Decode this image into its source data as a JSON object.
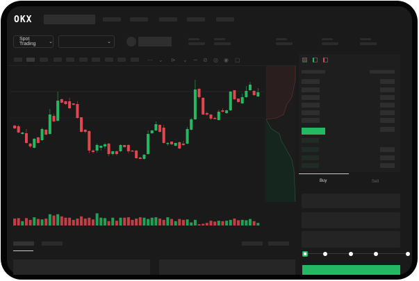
{
  "header": {
    "logo": "OKX"
  },
  "toolbar": {
    "market_selector": "Spot Trading",
    "chevron": "⌄"
  },
  "trade_panel": {
    "tabs": [
      {
        "label": "Buy",
        "active": true
      },
      {
        "label": "Sell",
        "active": false
      }
    ],
    "slider_level": 0
  },
  "colors": {
    "up": "#25b862",
    "down": "#e0474f",
    "background": "#1a1a1a",
    "accent": "#25b862"
  },
  "icons": [
    "chevron-down-icon",
    "indicator-icon",
    "draw-line-icon",
    "ruler-icon",
    "camera-icon",
    "settings-icon",
    "fullscreen-icon",
    "orderbook-both-icon",
    "orderbook-bids-icon",
    "orderbook-asks-icon"
  ],
  "chart_data": {
    "type": "candlestick",
    "columns": [
      "open",
      "high",
      "low",
      "close"
    ],
    "candles": [
      [
        119,
        120,
        114,
        115
      ],
      [
        118,
        120,
        108,
        109
      ],
      [
        107,
        110,
        106,
        109
      ],
      [
        108,
        114,
        93,
        94
      ],
      [
        93,
        94,
        87,
        89
      ],
      [
        87,
        101,
        86,
        100
      ],
      [
        102,
        103,
        93,
        94
      ],
      [
        98,
        116,
        97,
        114
      ],
      [
        113,
        114,
        105,
        106
      ],
      [
        107,
        143,
        106,
        135
      ],
      [
        133,
        136,
        124,
        125
      ],
      [
        126,
        168,
        125,
        155
      ],
      [
        157,
        158,
        151,
        152
      ],
      [
        154,
        155,
        149,
        150
      ],
      [
        154,
        159,
        143,
        144
      ],
      [
        151,
        151,
        148,
        149
      ],
      [
        150,
        154,
        129,
        130
      ],
      [
        131,
        131,
        109,
        110
      ],
      [
        113,
        114,
        108,
        110
      ],
      [
        111,
        112,
        79,
        83
      ],
      [
        83,
        85,
        79,
        81
      ],
      [
        83,
        93,
        80,
        91
      ],
      [
        87,
        90,
        83,
        90
      ],
      [
        89,
        94,
        86,
        92
      ],
      [
        93,
        94,
        75,
        78
      ],
      [
        78,
        82,
        76,
        82
      ],
      [
        82,
        83,
        76,
        78
      ],
      [
        82,
        92,
        81,
        91
      ],
      [
        91,
        91,
        87,
        88
      ],
      [
        91,
        92,
        79,
        82
      ],
      [
        83,
        84,
        82,
        82
      ],
      [
        83,
        84,
        71,
        72
      ],
      [
        73,
        74,
        71,
        71
      ],
      [
        71,
        78,
        70,
        77
      ],
      [
        78,
        112,
        77,
        107
      ],
      [
        108,
        113,
        107,
        112
      ],
      [
        112,
        125,
        111,
        121
      ],
      [
        120,
        121,
        109,
        110
      ],
      [
        116,
        120,
        93,
        94
      ],
      [
        93,
        95,
        90,
        94
      ],
      [
        96,
        96,
        91,
        92
      ],
      [
        90,
        94,
        89,
        94
      ],
      [
        95,
        96,
        85,
        86
      ],
      [
        93,
        97,
        90,
        91
      ],
      [
        93,
        117,
        92,
        114
      ],
      [
        113,
        130,
        112,
        128
      ],
      [
        128,
        185,
        127,
        171
      ],
      [
        172,
        173,
        158,
        160
      ],
      [
        159,
        160,
        134,
        135
      ],
      [
        137,
        139,
        133,
        135
      ],
      [
        135,
        135,
        127,
        129
      ],
      [
        130,
        132,
        128,
        129
      ],
      [
        127,
        142,
        126,
        139
      ],
      [
        141,
        144,
        138,
        139
      ],
      [
        137,
        142,
        136,
        141
      ],
      [
        141,
        169,
        140,
        168
      ],
      [
        170,
        170,
        156,
        157
      ],
      [
        158,
        158,
        152,
        153
      ],
      [
        151,
        165,
        150,
        160
      ],
      [
        160,
        176,
        159,
        169
      ],
      [
        170,
        182,
        169,
        178
      ],
      [
        169,
        170,
        162,
        163
      ],
      [
        161,
        173,
        160,
        167
      ]
    ],
    "volume": [
      32,
      34,
      20,
      34,
      26,
      38,
      30,
      28,
      32,
      52,
      46,
      52,
      42,
      36,
      36,
      26,
      32,
      42,
      32,
      36,
      28,
      56,
      36,
      34,
      20,
      36,
      22,
      36,
      36,
      38,
      26,
      32,
      38,
      36,
      30,
      36,
      38,
      32,
      26,
      38,
      30,
      20,
      30,
      26,
      28,
      14,
      26,
      6,
      8,
      12,
      22,
      18,
      22,
      20,
      22,
      26,
      32,
      24,
      26,
      24,
      30,
      20,
      12
    ]
  }
}
